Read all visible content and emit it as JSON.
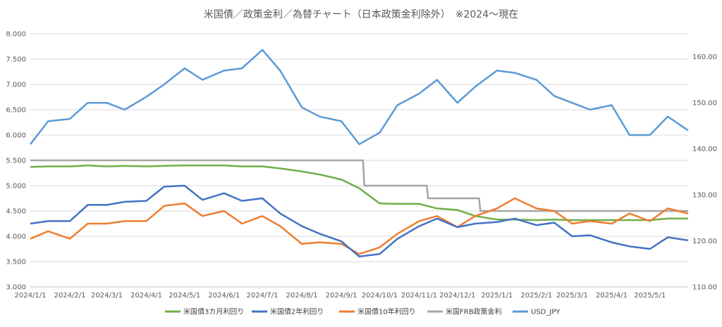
{
  "chart_data": {
    "type": "line",
    "title": "米国債／政策金利／為替チャート（日本政策金利除外）　※2024～現在",
    "xlabel": "",
    "ylabel": "",
    "x_ticks": [
      "2024/1/1",
      "2024/2/1",
      "2024/3/1",
      "2024/4/1",
      "2024/5/1",
      "2024/6/1",
      "2024/7/1",
      "2024/8/1",
      "2024/9/1",
      "2024/10/1",
      "2024/11/1",
      "2024/12/1",
      "2025/1/1",
      "2025/2/1",
      "2025/3/1",
      "2025/4/1",
      "2025/5/1"
    ],
    "x_range": [
      "2024/1/1",
      "2025/5/31"
    ],
    "y_left": {
      "min": 3.0,
      "max": 8.0,
      "step": 0.5,
      "ticks": [
        "3.000",
        "3.500",
        "4.000",
        "4.500",
        "5.000",
        "5.500",
        "6.000",
        "6.500",
        "7.000",
        "7.500",
        "8.000"
      ]
    },
    "y_right": {
      "min": 110,
      "max": 165,
      "ticks": [
        "110.00",
        "120.00",
        "130.00",
        "140.00",
        "150.00",
        "160.00"
      ]
    },
    "grid": true,
    "legend_position": "bottom",
    "series": [
      {
        "name": "米国債3カ月利回り",
        "color": "#70ad47",
        "axis": "left",
        "points": [
          [
            "2024/1/1",
            5.37
          ],
          [
            "2024/1/15",
            5.38
          ],
          [
            "2024/2/1",
            5.38
          ],
          [
            "2024/2/15",
            5.4
          ],
          [
            "2024/3/1",
            5.38
          ],
          [
            "2024/3/15",
            5.39
          ],
          [
            "2024/4/1",
            5.38
          ],
          [
            "2024/4/15",
            5.39
          ],
          [
            "2024/5/1",
            5.4
          ],
          [
            "2024/5/15",
            5.4
          ],
          [
            "2024/6/1",
            5.4
          ],
          [
            "2024/6/15",
            5.38
          ],
          [
            "2024/7/1",
            5.38
          ],
          [
            "2024/7/15",
            5.34
          ],
          [
            "2024/8/1",
            5.28
          ],
          [
            "2024/8/15",
            5.22
          ],
          [
            "2024/9/1",
            5.12
          ],
          [
            "2024/9/15",
            4.95
          ],
          [
            "2024/10/1",
            4.65
          ],
          [
            "2024/10/15",
            4.64
          ],
          [
            "2024/11/1",
            4.64
          ],
          [
            "2024/11/15",
            4.55
          ],
          [
            "2024/12/1",
            4.52
          ],
          [
            "2024/12/15",
            4.4
          ],
          [
            "2025/1/1",
            4.33
          ],
          [
            "2025/1/15",
            4.33
          ],
          [
            "2025/2/1",
            4.32
          ],
          [
            "2025/2/15",
            4.33
          ],
          [
            "2025/3/1",
            4.32
          ],
          [
            "2025/3/15",
            4.32
          ],
          [
            "2025/4/1",
            4.32
          ],
          [
            "2025/4/15",
            4.32
          ],
          [
            "2025/5/1",
            4.32
          ],
          [
            "2025/5/15",
            4.35
          ],
          [
            "2025/5/31",
            4.35
          ]
        ]
      },
      {
        "name": "米国債2年利回り",
        "color": "#4472c4",
        "axis": "left",
        "points": [
          [
            "2024/1/1",
            4.25
          ],
          [
            "2024/1/15",
            4.3
          ],
          [
            "2024/2/1",
            4.3
          ],
          [
            "2024/2/15",
            4.62
          ],
          [
            "2024/3/1",
            4.62
          ],
          [
            "2024/3/15",
            4.68
          ],
          [
            "2024/4/1",
            4.7
          ],
          [
            "2024/4/15",
            4.98
          ],
          [
            "2024/5/1",
            5.0
          ],
          [
            "2024/5/15",
            4.72
          ],
          [
            "2024/6/1",
            4.85
          ],
          [
            "2024/6/15",
            4.7
          ],
          [
            "2024/7/1",
            4.75
          ],
          [
            "2024/7/15",
            4.45
          ],
          [
            "2024/8/1",
            4.2
          ],
          [
            "2024/8/15",
            4.05
          ],
          [
            "2024/9/1",
            3.9
          ],
          [
            "2024/9/15",
            3.6
          ],
          [
            "2024/10/1",
            3.65
          ],
          [
            "2024/10/15",
            3.95
          ],
          [
            "2024/11/1",
            4.2
          ],
          [
            "2024/11/15",
            4.35
          ],
          [
            "2024/12/1",
            4.18
          ],
          [
            "2024/12/15",
            4.25
          ],
          [
            "2025/1/1",
            4.28
          ],
          [
            "2025/1/15",
            4.35
          ],
          [
            "2025/2/1",
            4.22
          ],
          [
            "2025/2/15",
            4.27
          ],
          [
            "2025/3/1",
            4.0
          ],
          [
            "2025/3/15",
            4.02
          ],
          [
            "2025/4/1",
            3.88
          ],
          [
            "2025/4/15",
            3.8
          ],
          [
            "2025/5/1",
            3.75
          ],
          [
            "2025/5/15",
            3.98
          ],
          [
            "2025/5/31",
            3.92
          ]
        ]
      },
      {
        "name": "米国債10年利回り",
        "color": "#ed7d31",
        "axis": "left",
        "points": [
          [
            "2024/1/1",
            3.95
          ],
          [
            "2024/1/15",
            4.1
          ],
          [
            "2024/2/1",
            3.95
          ],
          [
            "2024/2/15",
            4.25
          ],
          [
            "2024/3/1",
            4.25
          ],
          [
            "2024/3/15",
            4.3
          ],
          [
            "2024/4/1",
            4.3
          ],
          [
            "2024/4/15",
            4.6
          ],
          [
            "2024/5/1",
            4.65
          ],
          [
            "2024/5/15",
            4.4
          ],
          [
            "2024/6/1",
            4.5
          ],
          [
            "2024/6/15",
            4.25
          ],
          [
            "2024/7/1",
            4.4
          ],
          [
            "2024/7/15",
            4.2
          ],
          [
            "2024/8/1",
            3.85
          ],
          [
            "2024/8/15",
            3.88
          ],
          [
            "2024/9/1",
            3.85
          ],
          [
            "2024/9/15",
            3.65
          ],
          [
            "2024/10/1",
            3.78
          ],
          [
            "2024/10/15",
            4.05
          ],
          [
            "2024/11/1",
            4.3
          ],
          [
            "2024/11/15",
            4.4
          ],
          [
            "2024/12/1",
            4.18
          ],
          [
            "2024/12/15",
            4.4
          ],
          [
            "2025/1/1",
            4.55
          ],
          [
            "2025/1/15",
            4.75
          ],
          [
            "2025/2/1",
            4.55
          ],
          [
            "2025/2/15",
            4.5
          ],
          [
            "2025/3/1",
            4.25
          ],
          [
            "2025/3/15",
            4.3
          ],
          [
            "2025/4/1",
            4.25
          ],
          [
            "2025/4/15",
            4.45
          ],
          [
            "2025/5/1",
            4.3
          ],
          [
            "2025/5/15",
            4.55
          ],
          [
            "2025/5/31",
            4.45
          ]
        ]
      },
      {
        "name": "米国FRB政策金利",
        "color": "#a5a5a5",
        "axis": "left",
        "points": [
          [
            "2024/1/1",
            5.5
          ],
          [
            "2024/9/18",
            5.5
          ],
          [
            "2024/9/19",
            5.0
          ],
          [
            "2024/11/7",
            5.0
          ],
          [
            "2024/11/8",
            4.75
          ],
          [
            "2024/12/18",
            4.75
          ],
          [
            "2024/12/19",
            4.5
          ],
          [
            "2025/5/31",
            4.5
          ]
        ]
      },
      {
        "name": "USD_JPY",
        "color": "#5b9bd5",
        "axis": "right",
        "points": [
          [
            "2024/1/1",
            141.0
          ],
          [
            "2024/1/15",
            146.0
          ],
          [
            "2024/2/1",
            146.5
          ],
          [
            "2024/2/15",
            150.0
          ],
          [
            "2024/3/1",
            150.0
          ],
          [
            "2024/3/15",
            148.5
          ],
          [
            "2024/4/1",
            151.3
          ],
          [
            "2024/4/15",
            154.0
          ],
          [
            "2024/5/1",
            157.5
          ],
          [
            "2024/5/15",
            155.0
          ],
          [
            "2024/6/1",
            157.0
          ],
          [
            "2024/6/15",
            157.5
          ],
          [
            "2024/7/1",
            161.5
          ],
          [
            "2024/7/15",
            157.0
          ],
          [
            "2024/8/1",
            149.0
          ],
          [
            "2024/8/15",
            147.0
          ],
          [
            "2024/9/1",
            146.0
          ],
          [
            "2024/9/15",
            141.0
          ],
          [
            "2024/10/1",
            143.5
          ],
          [
            "2024/10/15",
            149.5
          ],
          [
            "2024/11/1",
            152.0
          ],
          [
            "2024/11/15",
            155.0
          ],
          [
            "2024/12/1",
            150.0
          ],
          [
            "2024/12/15",
            153.5
          ],
          [
            "2025/1/1",
            157.0
          ],
          [
            "2025/1/15",
            156.5
          ],
          [
            "2025/2/1",
            155.0
          ],
          [
            "2025/2/15",
            151.5
          ],
          [
            "2025/3/1",
            150.0
          ],
          [
            "2025/3/15",
            148.5
          ],
          [
            "2025/4/1",
            149.5
          ],
          [
            "2025/4/15",
            143.0
          ],
          [
            "2025/5/1",
            143.0
          ],
          [
            "2025/5/15",
            147.0
          ],
          [
            "2025/5/31",
            144.0
          ]
        ]
      }
    ]
  }
}
